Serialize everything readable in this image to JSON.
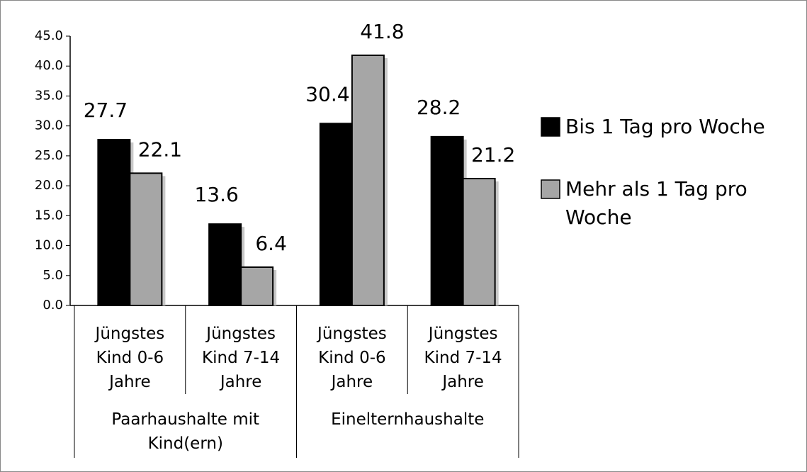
{
  "chart_data": {
    "type": "bar",
    "categories": [
      "Jüngstes Kind 0-6 Jahre",
      "Jüngstes Kind 7-14 Jahre",
      "Jüngstes Kind 0-6 Jahre",
      "Jüngstes Kind 7-14 Jahre"
    ],
    "groups": [
      "Paarhaushalte mit Kind(ern)",
      "Einelternhaushalte"
    ],
    "series": [
      {
        "name": "Bis 1 Tag pro Woche",
        "color": "#000000",
        "values": [
          27.7,
          13.6,
          30.4,
          28.2
        ]
      },
      {
        "name": "Mehr als 1 Tag pro Woche",
        "color": "#a6a6a6",
        "values": [
          22.1,
          6.4,
          41.8,
          21.2
        ]
      }
    ],
    "ylim": [
      0,
      45
    ],
    "yticks": [
      {
        "value": 0,
        "label": "0.0"
      },
      {
        "value": 5,
        "label": "5.0"
      },
      {
        "value": 10,
        "label": "10.0"
      },
      {
        "value": 15,
        "label": "15.0"
      },
      {
        "value": 20,
        "label": "20.0"
      },
      {
        "value": 25,
        "label": "25.0"
      },
      {
        "value": 30,
        "label": "30.0"
      },
      {
        "value": 35,
        "label": "35.0"
      },
      {
        "value": 40,
        "label": "40.0"
      },
      {
        "value": 45,
        "label": "45.0"
      }
    ],
    "legend": "right"
  }
}
